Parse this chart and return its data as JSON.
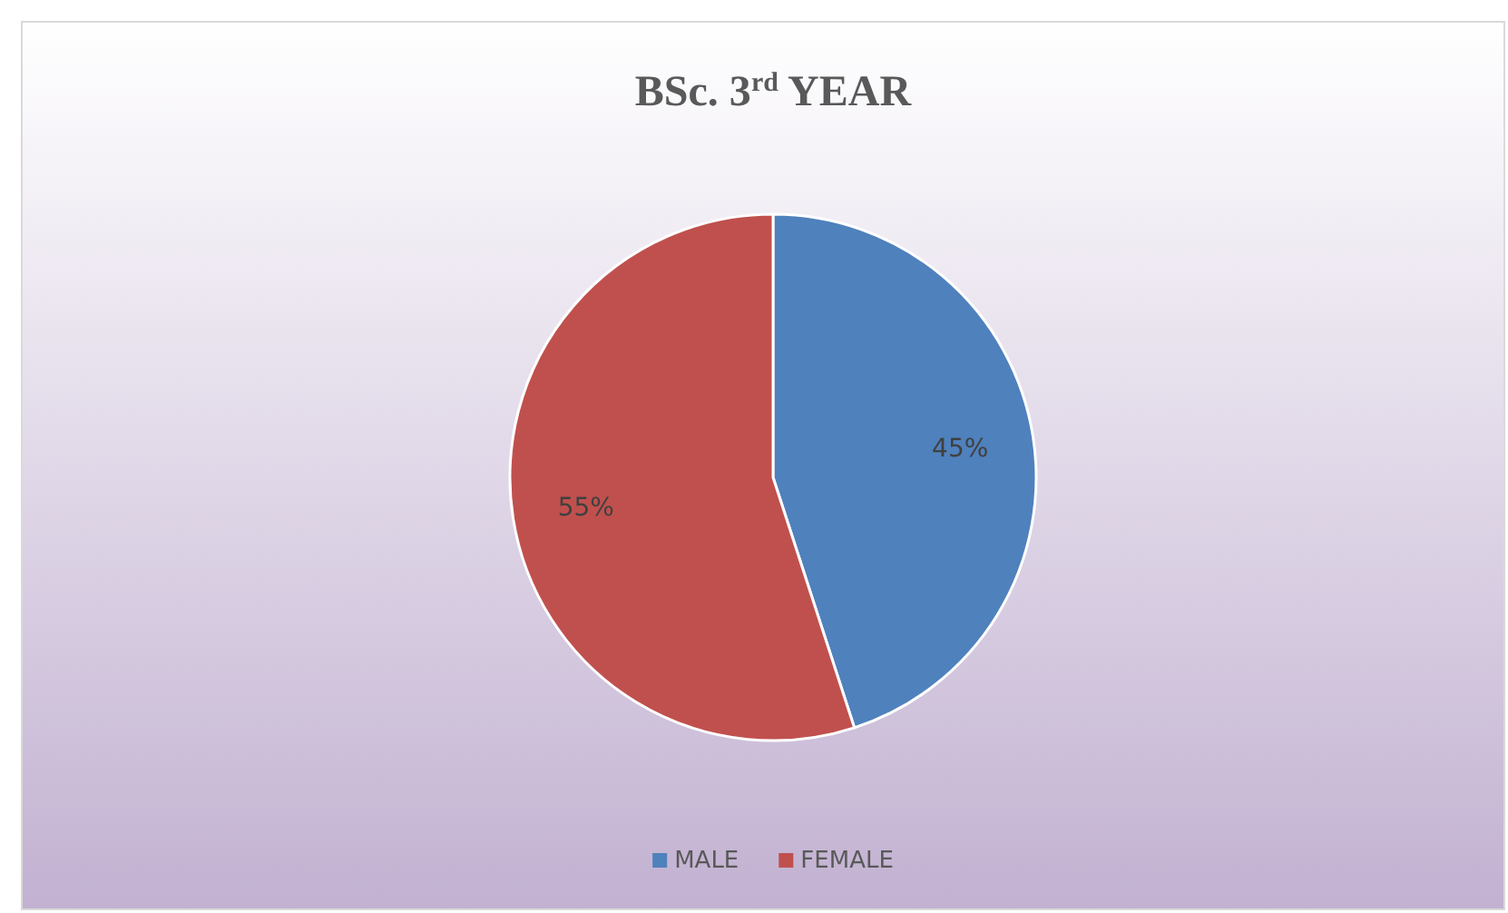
{
  "chart_data": {
    "type": "pie",
    "title": "BSc. 3$^{rd}$ YEAR",
    "categories": [
      "MALE",
      "FEMALE"
    ],
    "values": [
      45,
      55
    ],
    "colors": [
      "#4f81bd",
      "#c0504d"
    ],
    "value_labels": [
      "45%",
      "55%"
    ],
    "legend": "bottom"
  }
}
